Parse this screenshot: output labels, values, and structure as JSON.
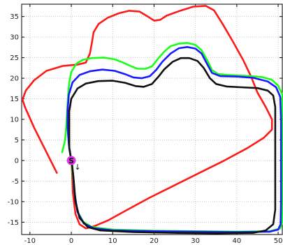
{
  "chart_data": {
    "type": "line",
    "title": "",
    "xlabel": "",
    "ylabel": "",
    "xlim": [
      -12,
      51
    ],
    "ylim": [
      -18,
      38
    ],
    "grid": true,
    "legend": "none",
    "x_ticks": [
      -10,
      0,
      10,
      20,
      30,
      40,
      50
    ],
    "y_ticks": [
      -15,
      -10,
      -5,
      0,
      5,
      10,
      15,
      20,
      25,
      30,
      35
    ],
    "x_tick_labels": [
      "-10",
      "0",
      "10",
      "20",
      "30",
      "40",
      "50"
    ],
    "y_tick_labels": [
      "-15",
      "-10",
      "-5",
      "0",
      "5",
      "10",
      "15",
      "20",
      "25",
      "30",
      "35"
    ],
    "start_marker": {
      "x": 0,
      "y": 0,
      "label": "S",
      "color": "#e234e6"
    },
    "direction_annotation": {
      "text": "↓",
      "x": 1.5,
      "y": -2.2
    },
    "series": [
      {
        "color": "#ff1a1a",
        "points": [
          [
            -3.5,
            -3.0
          ],
          [
            -6.0,
            2.0
          ],
          [
            -9.0,
            8.0
          ],
          [
            -11.2,
            13.0
          ],
          [
            -11.8,
            14.8
          ],
          [
            -11.0,
            17.0
          ],
          [
            -9.0,
            19.5
          ],
          [
            -6.0,
            21.8
          ],
          [
            -2.0,
            23.0
          ],
          [
            1.5,
            23.3
          ],
          [
            3.5,
            23.8
          ],
          [
            4.5,
            26.0
          ],
          [
            5.0,
            28.8
          ],
          [
            5.4,
            31.2
          ],
          [
            6.6,
            33.2
          ],
          [
            8.8,
            34.7
          ],
          [
            11.5,
            35.8
          ],
          [
            14.0,
            36.4
          ],
          [
            16.5,
            36.2
          ],
          [
            18.5,
            35.0
          ],
          [
            20.0,
            34.0
          ],
          [
            21.5,
            34.2
          ],
          [
            23.0,
            35.2
          ],
          [
            26.0,
            36.3
          ],
          [
            29.5,
            37.4
          ],
          [
            32.5,
            37.6
          ],
          [
            34.5,
            36.5
          ],
          [
            36.5,
            33.3
          ],
          [
            39.0,
            29.0
          ],
          [
            41.5,
            24.5
          ],
          [
            43.5,
            20.3
          ],
          [
            45.0,
            16.5
          ],
          [
            47.0,
            13.0
          ],
          [
            48.5,
            10.0
          ],
          [
            48.5,
            7.5
          ],
          [
            46.5,
            5.5
          ],
          [
            42.5,
            3.0
          ],
          [
            37.0,
            0.0
          ],
          [
            31.0,
            -3.0
          ],
          [
            25.0,
            -6.0
          ],
          [
            19.0,
            -9.0
          ],
          [
            13.5,
            -12.0
          ],
          [
            9.0,
            -14.5
          ],
          [
            5.5,
            -16.0
          ],
          [
            3.5,
            -16.5
          ],
          [
            2.0,
            -15.5
          ],
          [
            1.0,
            -13.0
          ],
          [
            0.4,
            -8.0
          ],
          [
            0.2,
            -3.0
          ],
          [
            0.0,
            0.0
          ]
        ]
      },
      {
        "color": "#1aff1a",
        "points": [
          [
            -2.2,
            2.0
          ],
          [
            -1.5,
            5.0
          ],
          [
            -1.2,
            8.5
          ],
          [
            -1.0,
            12.0
          ],
          [
            -0.8,
            15.5
          ],
          [
            -0.5,
            19.0
          ],
          [
            0.0,
            21.5
          ],
          [
            1.2,
            23.5
          ],
          [
            2.8,
            24.5
          ],
          [
            5.0,
            24.9
          ],
          [
            8.0,
            25.0
          ],
          [
            10.5,
            24.6
          ],
          [
            12.5,
            23.8
          ],
          [
            14.5,
            22.9
          ],
          [
            16.0,
            22.3
          ],
          [
            18.0,
            22.3
          ],
          [
            19.5,
            22.9
          ],
          [
            21.0,
            24.8
          ],
          [
            22.5,
            26.5
          ],
          [
            24.0,
            27.8
          ],
          [
            26.0,
            28.4
          ],
          [
            28.0,
            28.6
          ],
          [
            30.0,
            28.1
          ],
          [
            31.5,
            26.8
          ],
          [
            32.8,
            24.5
          ],
          [
            34.0,
            22.0
          ],
          [
            35.5,
            21.0
          ],
          [
            38.0,
            20.8
          ],
          [
            42.0,
            20.6
          ],
          [
            46.0,
            20.3
          ],
          [
            48.5,
            19.6
          ],
          [
            50.0,
            18.2
          ],
          [
            51.0,
            16.0
          ],
          [
            51.0,
            10.0
          ],
          [
            51.0,
            0.0
          ],
          [
            51.0,
            -10.0
          ],
          [
            51.0,
            -15.0
          ],
          [
            50.5,
            -16.5
          ],
          [
            48.0,
            -17.2
          ],
          [
            40.0,
            -17.3
          ],
          [
            30.0,
            -17.2
          ],
          [
            20.0,
            -17.1
          ],
          [
            10.0,
            -16.8
          ],
          [
            5.0,
            -16.2
          ],
          [
            3.0,
            -15.0
          ],
          [
            1.5,
            -12.5
          ],
          [
            0.8,
            -8.0
          ],
          [
            0.3,
            -3.0
          ],
          [
            0.0,
            0.0
          ]
        ]
      },
      {
        "color": "#1a1aff",
        "points": [
          [
            0.0,
            0.0
          ],
          [
            -0.6,
            4.0
          ],
          [
            -0.9,
            8.0
          ],
          [
            -0.9,
            12.0
          ],
          [
            -0.6,
            16.0
          ],
          [
            0.3,
            19.0
          ],
          [
            2.0,
            20.8
          ],
          [
            4.5,
            21.7
          ],
          [
            7.5,
            22.1
          ],
          [
            10.5,
            21.8
          ],
          [
            13.0,
            21.0
          ],
          [
            15.0,
            20.2
          ],
          [
            17.0,
            20.0
          ],
          [
            19.0,
            20.5
          ],
          [
            20.5,
            22.0
          ],
          [
            22.0,
            24.0
          ],
          [
            24.0,
            26.0
          ],
          [
            26.0,
            27.3
          ],
          [
            28.0,
            27.6
          ],
          [
            30.0,
            27.2
          ],
          [
            31.5,
            26.0
          ],
          [
            32.8,
            23.5
          ],
          [
            34.0,
            21.3
          ],
          [
            36.0,
            20.5
          ],
          [
            40.0,
            20.4
          ],
          [
            44.0,
            20.1
          ],
          [
            47.5,
            19.2
          ],
          [
            49.5,
            17.8
          ],
          [
            50.5,
            15.5
          ],
          [
            50.7,
            10.0
          ],
          [
            50.7,
            0.0
          ],
          [
            50.7,
            -10.0
          ],
          [
            50.6,
            -15.5
          ],
          [
            50.0,
            -16.8
          ],
          [
            48.0,
            -17.3
          ],
          [
            40.0,
            -17.4
          ],
          [
            30.0,
            -17.3
          ],
          [
            20.0,
            -17.2
          ],
          [
            10.0,
            -17.0
          ],
          [
            5.5,
            -16.5
          ],
          [
            3.0,
            -15.3
          ],
          [
            1.5,
            -12.5
          ],
          [
            0.8,
            -8.0
          ],
          [
            0.4,
            -3.0
          ]
        ]
      },
      {
        "color": "#111111",
        "points": [
          [
            0.0,
            0.0
          ],
          [
            -0.5,
            3.0
          ],
          [
            -0.5,
            8.0
          ],
          [
            -0.5,
            12.0
          ],
          [
            0.0,
            15.0
          ],
          [
            1.5,
            17.5
          ],
          [
            3.5,
            18.7
          ],
          [
            6.5,
            19.3
          ],
          [
            10.0,
            19.4
          ],
          [
            13.0,
            18.9
          ],
          [
            15.5,
            18.1
          ],
          [
            17.5,
            17.9
          ],
          [
            19.5,
            18.6
          ],
          [
            21.0,
            20.3
          ],
          [
            22.5,
            22.2
          ],
          [
            24.5,
            24.0
          ],
          [
            26.5,
            24.9
          ],
          [
            28.5,
            24.9
          ],
          [
            30.5,
            24.2
          ],
          [
            32.0,
            22.5
          ],
          [
            33.5,
            20.0
          ],
          [
            35.0,
            18.6
          ],
          [
            37.5,
            18.0
          ],
          [
            41.0,
            17.8
          ],
          [
            45.0,
            17.6
          ],
          [
            47.5,
            17.0
          ],
          [
            48.8,
            15.8
          ],
          [
            49.3,
            13.0
          ],
          [
            49.3,
            5.0
          ],
          [
            49.3,
            -5.0
          ],
          [
            49.3,
            -12.0
          ],
          [
            48.8,
            -15.5
          ],
          [
            47.0,
            -17.0
          ],
          [
            44.0,
            -17.6
          ],
          [
            35.0,
            -17.7
          ],
          [
            25.0,
            -17.6
          ],
          [
            15.0,
            -17.4
          ],
          [
            7.0,
            -17.0
          ],
          [
            4.0,
            -16.2
          ],
          [
            2.0,
            -14.0
          ],
          [
            1.0,
            -10.0
          ],
          [
            0.6,
            -5.0
          ],
          [
            0.2,
            -1.0
          ]
        ]
      }
    ]
  }
}
